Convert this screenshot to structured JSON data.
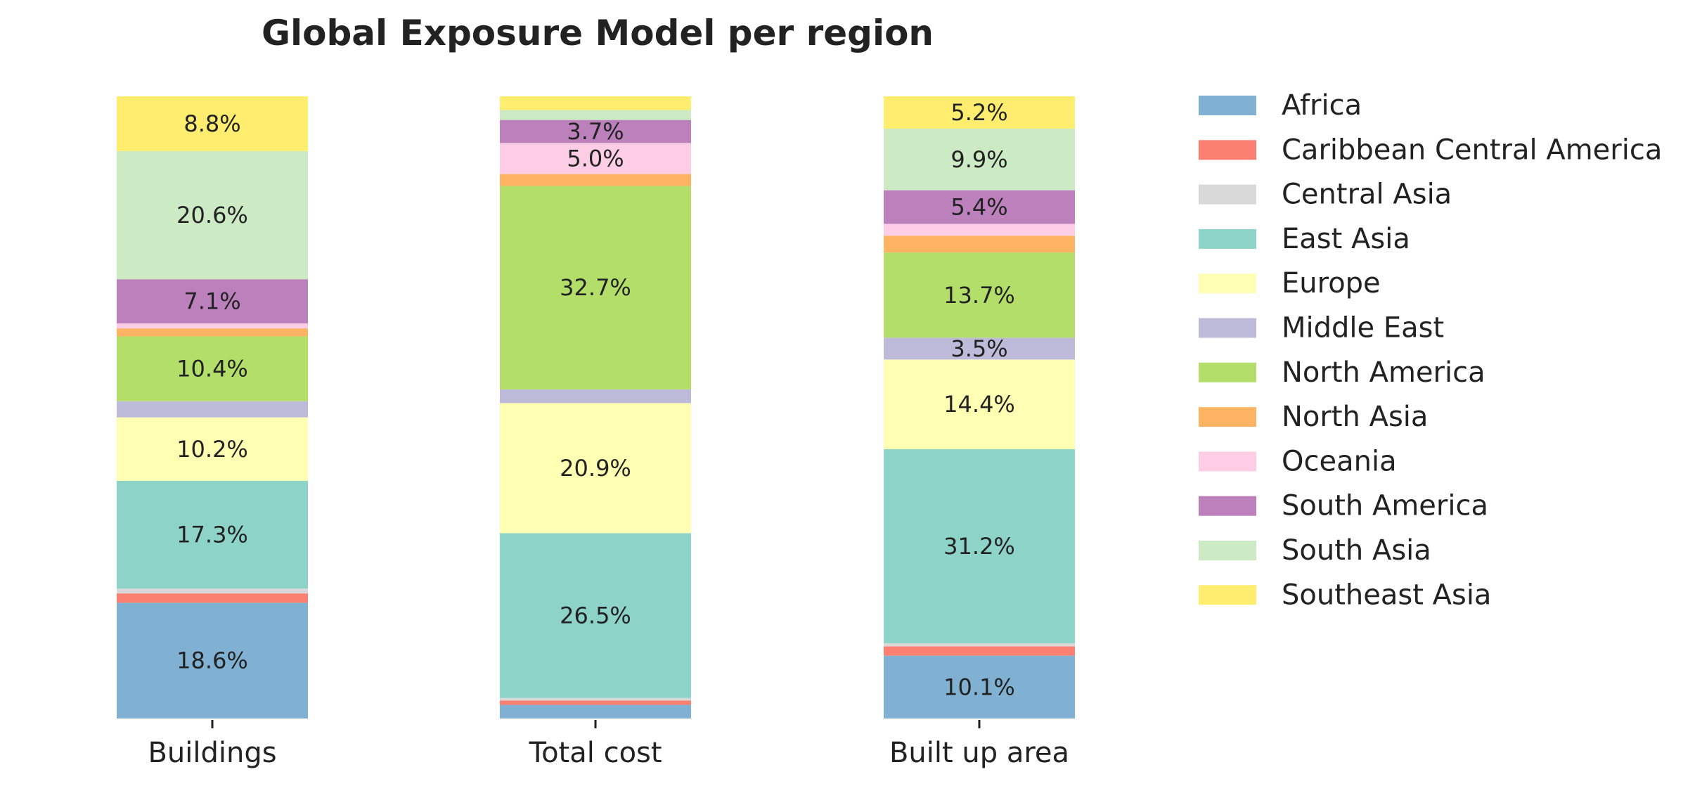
{
  "chart_data": {
    "type": "bar",
    "stacked": true,
    "normalized": true,
    "title": "Global Exposure Model per region",
    "xlabel": "",
    "ylabel": "",
    "ylim": [
      0,
      100
    ],
    "grid": false,
    "legend_position": "right",
    "categories": [
      "Buildings",
      "Total cost",
      "Built up area"
    ],
    "series": [
      {
        "name": "Africa",
        "color": "#80b1d3",
        "values": [
          18.6,
          2.2,
          10.1
        ]
      },
      {
        "name": "Caribbean Central America",
        "color": "#fb8072",
        "values": [
          1.5,
          0.7,
          1.5
        ]
      },
      {
        "name": "Central Asia",
        "color": "#d9d9d9",
        "values": [
          0.8,
          0.4,
          0.5
        ]
      },
      {
        "name": "East Asia",
        "color": "#8dd3c7",
        "values": [
          17.3,
          26.5,
          31.2
        ]
      },
      {
        "name": "Europe",
        "color": "#ffffb3",
        "values": [
          10.2,
          20.9,
          14.4
        ]
      },
      {
        "name": "Middle East",
        "color": "#bebada",
        "values": [
          2.6,
          2.2,
          3.5
        ]
      },
      {
        "name": "North America",
        "color": "#b3de69",
        "values": [
          10.4,
          32.7,
          13.7
        ]
      },
      {
        "name": "North Asia",
        "color": "#fdb462",
        "values": [
          1.3,
          1.9,
          2.7
        ]
      },
      {
        "name": "Oceania",
        "color": "#fccde5",
        "values": [
          0.8,
          5.0,
          1.9
        ]
      },
      {
        "name": "South America",
        "color": "#bc80bd",
        "values": [
          7.1,
          3.7,
          5.4
        ]
      },
      {
        "name": "South Asia",
        "color": "#ccebc5",
        "values": [
          20.6,
          1.6,
          9.9
        ]
      },
      {
        "name": "Southeast Asia",
        "color": "#ffed6f",
        "values": [
          8.8,
          2.2,
          5.2
        ]
      }
    ],
    "data_labels": [
      [
        "18.6%",
        "",
        "",
        "17.3%",
        "10.2%",
        "",
        "10.4%",
        "",
        "",
        "7.1%",
        "20.6%",
        "8.8%"
      ],
      [
        "",
        "",
        "",
        "26.5%",
        "20.9%",
        "",
        "32.7%",
        "",
        "5.0%",
        "3.7%",
        "",
        ""
      ],
      [
        "10.1%",
        "",
        "",
        "31.2%",
        "14.4%",
        "3.5%",
        "13.7%",
        "",
        "",
        "5.4%",
        "9.9%",
        "5.2%"
      ]
    ]
  }
}
